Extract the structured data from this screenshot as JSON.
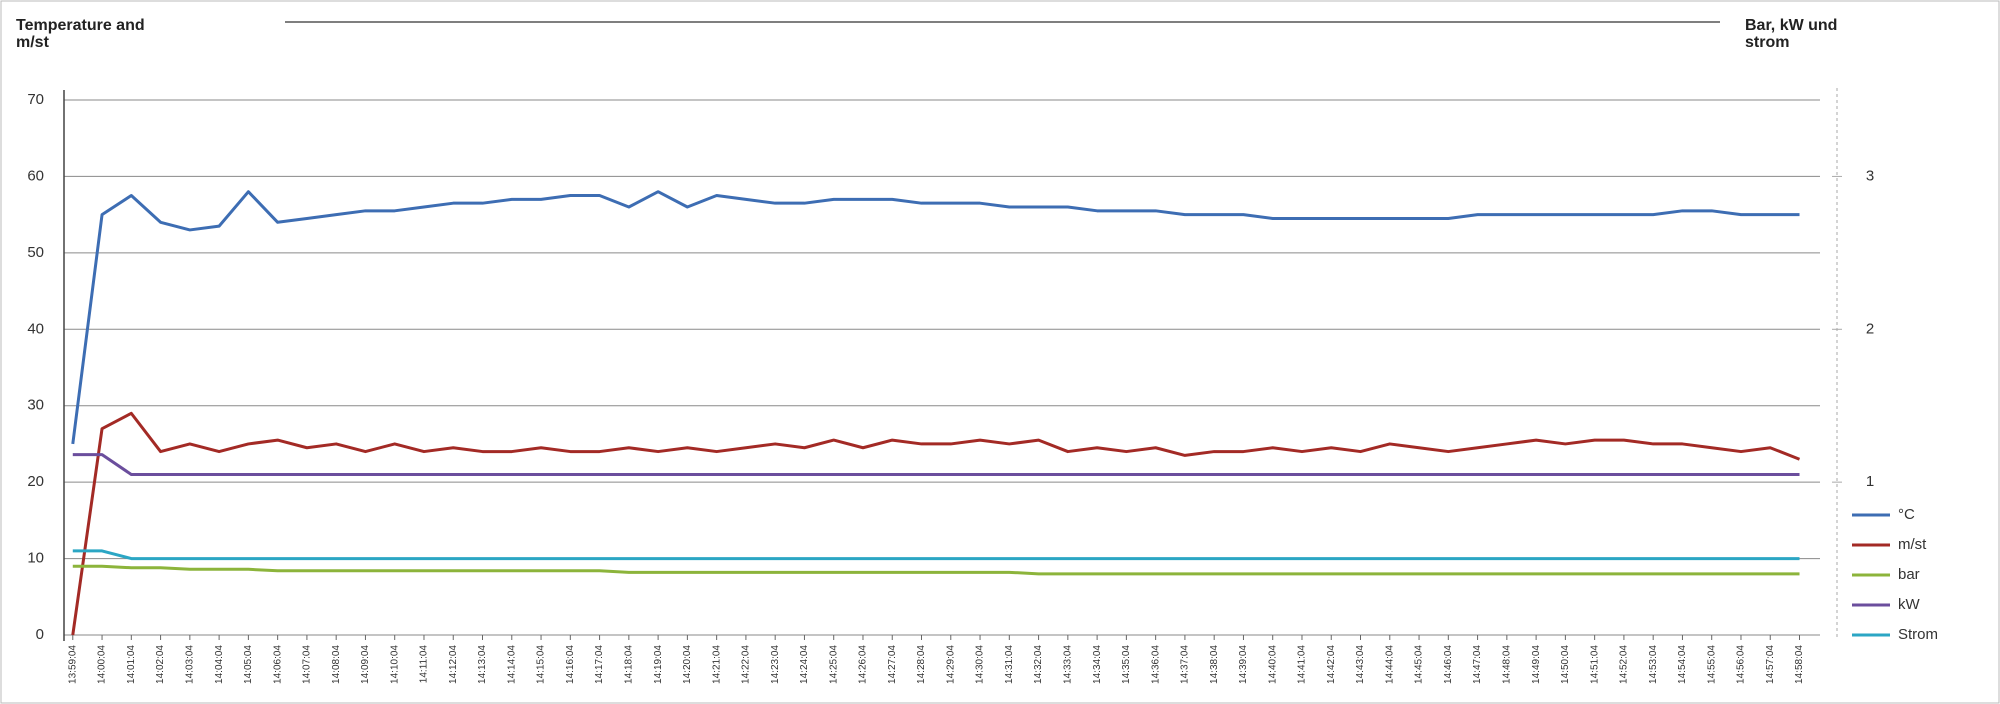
{
  "chart_data": {
    "type": "line",
    "y_label": "Temperature and m/st",
    "y2_label": "Bar, kW und strom",
    "categories": [
      "13:59:04",
      "14:00:04",
      "14:01:04",
      "14:02:04",
      "14:03:04",
      "14:04:04",
      "14:05:04",
      "14:06:04",
      "14:07:04",
      "14:08:04",
      "14:09:04",
      "14:10:04",
      "14:11:04",
      "14:12:04",
      "14:13:04",
      "14:14:04",
      "14:15:04",
      "14:16:04",
      "14:17:04",
      "14:18:04",
      "14:19:04",
      "14:20:04",
      "14:21:04",
      "14:22:04",
      "14:23:04",
      "14:24:04",
      "14:25:04",
      "14:26:04",
      "14:27:04",
      "14:28:04",
      "14:29:04",
      "14:30:04",
      "14:31:04",
      "14:32:04",
      "14:33:04",
      "14:34:04",
      "14:35:04",
      "14:36:04",
      "14:37:04",
      "14:38:04",
      "14:39:04",
      "14:40:04",
      "14:41:04",
      "14:42:04",
      "14:43:04",
      "14:44:04",
      "14:45:04",
      "14:46:04",
      "14:47:04",
      "14:48:04",
      "14:49:04",
      "14:50:04",
      "14:51:04",
      "14:52:04",
      "14:53:04",
      "14:54:04",
      "14:55:04",
      "14:56:04",
      "14:57:04",
      "14:58:04"
    ],
    "series": [
      {
        "name": "°C",
        "color": "#3d6db3",
        "values": [
          25,
          55,
          57.5,
          54,
          53,
          53.5,
          58,
          54,
          54.5,
          55,
          55.5,
          55.5,
          56,
          56.5,
          56.5,
          57,
          57,
          57.5,
          57.5,
          56,
          58,
          56,
          57.5,
          57,
          56.5,
          56.5,
          57,
          57,
          57,
          56.5,
          56.5,
          56.5,
          56,
          56,
          56,
          55.5,
          55.5,
          55.5,
          55,
          55,
          55,
          54.5,
          54.5,
          54.5,
          54.5,
          54.5,
          54.5,
          54.5,
          55,
          55,
          55,
          55,
          55,
          55,
          55,
          55.5,
          55.5,
          55,
          55,
          55
        ]
      },
      {
        "name": "m/st",
        "color": "#a32a25",
        "values": [
          0,
          27,
          29,
          24,
          25,
          24,
          25,
          25.5,
          24.5,
          25,
          24,
          25,
          24,
          24.5,
          24,
          24,
          24.5,
          24,
          24,
          24.5,
          24,
          24.5,
          24,
          24.5,
          25,
          24.5,
          25.5,
          24.5,
          25.5,
          25,
          25,
          25.5,
          25,
          25.5,
          24,
          24.5,
          24,
          24.5,
          23.5,
          24,
          24,
          24.5,
          24,
          24.5,
          24,
          25,
          24.5,
          24,
          24.5,
          25,
          25.5,
          25,
          25.5,
          25.5,
          25,
          25,
          24.5,
          24,
          24.5,
          23
        ]
      },
      {
        "name": "bar",
        "color": "#8cb43b",
        "axis": "y2",
        "values": [
          0.45,
          0.45,
          0.44,
          0.44,
          0.43,
          0.43,
          0.43,
          0.42,
          0.42,
          0.42,
          0.42,
          0.42,
          0.42,
          0.42,
          0.42,
          0.42,
          0.42,
          0.42,
          0.42,
          0.41,
          0.41,
          0.41,
          0.41,
          0.41,
          0.41,
          0.41,
          0.41,
          0.41,
          0.41,
          0.41,
          0.41,
          0.41,
          0.41,
          0.4,
          0.4,
          0.4,
          0.4,
          0.4,
          0.4,
          0.4,
          0.4,
          0.4,
          0.4,
          0.4,
          0.4,
          0.4,
          0.4,
          0.4,
          0.4,
          0.4,
          0.4,
          0.4,
          0.4,
          0.4,
          0.4,
          0.4,
          0.4,
          0.4,
          0.4,
          0.4
        ]
      },
      {
        "name": "kW",
        "color": "#6b4e9d",
        "axis": "y2",
        "values": [
          1.18,
          1.18,
          1.05,
          1.05,
          1.05,
          1.05,
          1.05,
          1.05,
          1.05,
          1.05,
          1.05,
          1.05,
          1.05,
          1.05,
          1.05,
          1.05,
          1.05,
          1.05,
          1.05,
          1.05,
          1.05,
          1.05,
          1.05,
          1.05,
          1.05,
          1.05,
          1.05,
          1.05,
          1.05,
          1.05,
          1.05,
          1.05,
          1.05,
          1.05,
          1.05,
          1.05,
          1.05,
          1.05,
          1.05,
          1.05,
          1.05,
          1.05,
          1.05,
          1.05,
          1.05,
          1.05,
          1.05,
          1.05,
          1.05,
          1.05,
          1.05,
          1.05,
          1.05,
          1.05,
          1.05,
          1.05,
          1.05,
          1.05,
          1.05,
          1.05
        ]
      },
      {
        "name": "Strom",
        "color": "#2ba6c4",
        "axis": "y2",
        "values": [
          0.55,
          0.55,
          0.5,
          0.5,
          0.5,
          0.5,
          0.5,
          0.5,
          0.5,
          0.5,
          0.5,
          0.5,
          0.5,
          0.5,
          0.5,
          0.5,
          0.5,
          0.5,
          0.5,
          0.5,
          0.5,
          0.5,
          0.5,
          0.5,
          0.5,
          0.5,
          0.5,
          0.5,
          0.5,
          0.5,
          0.5,
          0.5,
          0.5,
          0.5,
          0.5,
          0.5,
          0.5,
          0.5,
          0.5,
          0.5,
          0.5,
          0.5,
          0.5,
          0.5,
          0.5,
          0.5,
          0.5,
          0.5,
          0.5,
          0.5,
          0.5,
          0.5,
          0.5,
          0.5,
          0.5,
          0.5,
          0.5,
          0.5,
          0.5,
          0.5
        ]
      }
    ],
    "ylim": [
      0,
      70
    ],
    "yticks": [
      0,
      10,
      20,
      30,
      40,
      50,
      60,
      70
    ],
    "y2lim": [
      0,
      3.5
    ],
    "y2ticks": [
      1,
      2,
      3
    ],
    "grid": true,
    "legend": "right"
  }
}
